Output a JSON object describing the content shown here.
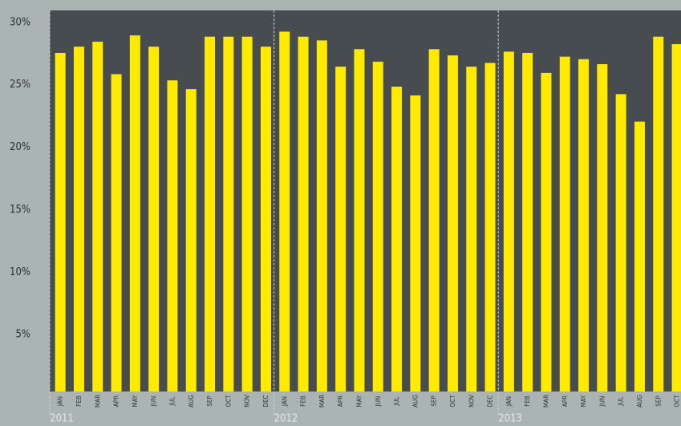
{
  "chart_data": {
    "type": "bar",
    "categories": [
      "JAN",
      "FEB",
      "MAR",
      "APR",
      "MAY",
      "JUN",
      "JUL",
      "AUG",
      "SEP",
      "OCT",
      "NOV",
      "DEC",
      "JAN",
      "FEB",
      "MAR",
      "APR",
      "MAY",
      "JUN",
      "JUL",
      "AUG",
      "SEP",
      "OCT",
      "NOV",
      "DEC",
      "JAN",
      "FEB",
      "MAR",
      "APR",
      "MAY",
      "JUN",
      "JUL",
      "AUG",
      "SEP",
      "OCT"
    ],
    "values": [
      27.1,
      27.6,
      28.0,
      25.4,
      28.5,
      27.6,
      24.9,
      24.2,
      28.4,
      28.4,
      28.4,
      27.6,
      28.8,
      28.4,
      28.1,
      26.0,
      27.4,
      26.4,
      24.4,
      23.7,
      27.4,
      26.9,
      26.0,
      26.3,
      27.2,
      27.1,
      25.5,
      26.8,
      26.6,
      26.2,
      23.8,
      21.6,
      28.4,
      27.8
    ],
    "year_labels": [
      "2011",
      "2012",
      "2013"
    ],
    "color": "#ffea00",
    "ylim": [
      0,
      30.5
    ],
    "yticks": [
      {
        "value": 5,
        "label": "5%"
      },
      {
        "value": 10,
        "label": "10%"
      },
      {
        "value": 15,
        "label": "15%"
      },
      {
        "value": 20,
        "label": "20%"
      },
      {
        "value": 25,
        "label": "25%"
      },
      {
        "value": 30,
        "label": "30%"
      }
    ],
    "grid": false
  }
}
